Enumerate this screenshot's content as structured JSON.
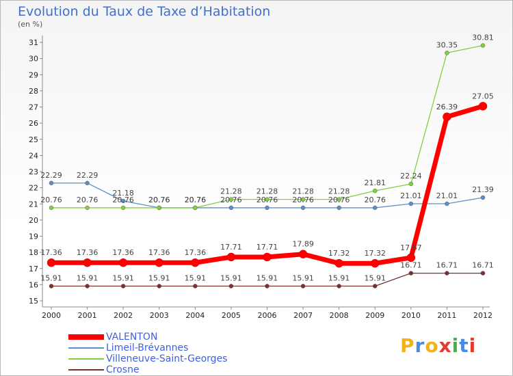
{
  "title": "Evolution du Taux de Taxe d’Habitation",
  "unit": "(en %)",
  "logo": {
    "letters": [
      "P",
      "r",
      "o",
      "x",
      "i",
      "t",
      "i"
    ],
    "colors": [
      "#f2b21c",
      "#4a8be0",
      "#f2b21c",
      "#e23a2d",
      "#3fb24a",
      "#4a8be0",
      "#e23a2d"
    ]
  },
  "chart_data": {
    "type": "line",
    "x": [
      "2000",
      "2001",
      "2002",
      "2003",
      "2004",
      "2005",
      "2006",
      "2007",
      "2008",
      "2009",
      "2010",
      "2011",
      "2012"
    ],
    "ylim": [
      15,
      31
    ],
    "yticks": [
      "15",
      "16",
      "17",
      "18",
      "19",
      "20",
      "21",
      "22",
      "23",
      "24",
      "25",
      "26",
      "27",
      "28",
      "29",
      "30",
      "31"
    ],
    "grid": false,
    "legend": "bottom-left",
    "series": [
      {
        "name": "VALENTON",
        "color": "#ff0000",
        "values": [
          17.36,
          17.36,
          17.36,
          17.36,
          17.36,
          17.71,
          17.71,
          17.89,
          17.32,
          17.32,
          17.67,
          26.39,
          27.05
        ],
        "labels": [
          "17.36",
          "17.36",
          "17.36",
          "17.36",
          "17.36",
          "17.71",
          "17.71",
          "17.89",
          "17.32",
          "17.32",
          "17.67",
          "26.39",
          "27.05"
        ]
      },
      {
        "name": "Limeil-Brévannes",
        "color": "#5b8fc7",
        "values": [
          22.29,
          22.29,
          21.18,
          20.76,
          20.76,
          20.76,
          20.76,
          20.76,
          20.76,
          20.76,
          21.01,
          21.01,
          21.39
        ],
        "labels": [
          "22.29",
          "22.29",
          "21.18",
          "20.76",
          "20.76",
          "20.76",
          "20.76",
          "20.76",
          "20.76",
          "20.76",
          "21.01",
          "21.01",
          "21.39"
        ]
      },
      {
        "name": "Villeneuve-Saint-Georges",
        "color": "#7fd13b",
        "values": [
          20.76,
          20.76,
          20.76,
          20.76,
          20.76,
          21.28,
          21.28,
          21.28,
          21.28,
          21.81,
          22.24,
          30.35,
          30.81
        ],
        "labels": [
          "20.76",
          "20.76",
          "20.76",
          "20.76",
          "20.76",
          "21.28",
          "21.28",
          "21.28",
          "21.28",
          "21.81",
          "22.24",
          "30.35",
          "30.81"
        ]
      },
      {
        "name": "Crosne",
        "color": "#7a3030",
        "values": [
          15.91,
          15.91,
          15.91,
          15.91,
          15.91,
          15.91,
          15.91,
          15.91,
          15.91,
          15.91,
          16.71,
          16.71,
          16.71
        ],
        "labels": [
          "15.91",
          "15.91",
          "15.91",
          "15.91",
          "15.91",
          "15.91",
          "15.91",
          "15.91",
          "15.91",
          "15.91",
          "16.71",
          "16.71",
          "16.71"
        ]
      }
    ]
  }
}
